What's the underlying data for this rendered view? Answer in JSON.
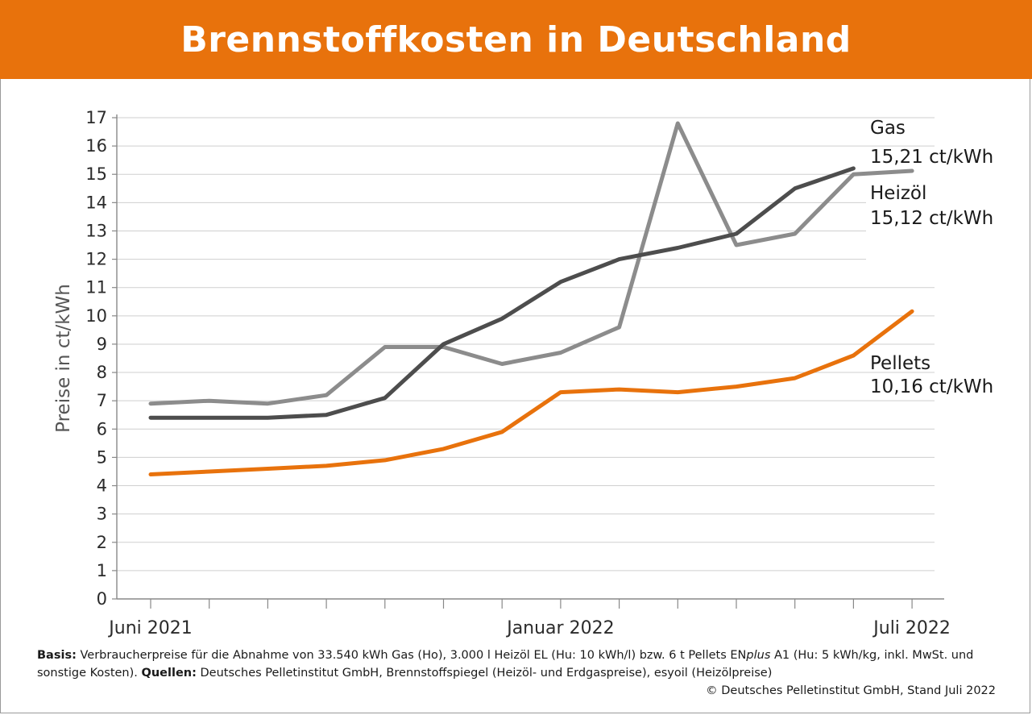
{
  "title": "Brennstoffkosten in Deutschland",
  "footer": {
    "basis_label": "Basis:",
    "basis_text": " Verbraucherpreise für die Abnahme von 33.540 kWh Gas (Ho), 3.000 l Heizöl EL (Hu: 10 kWh/l) bzw. 6 t Pellets EN",
    "basis_italic": "plus",
    "basis_text2": " A1 (Hu: 5 kWh/kg, inkl. MwSt. und sonstige Kosten). ",
    "quellen_label": "Quellen:",
    "quellen_text": " Deutsches Pelletinstitut GmbH, Brennstoffspiegel (Heizöl- und Erdgaspreise), esyoil (Heizölpreise)",
    "copyright": "© Deutsches Pelletinstitut GmbH, Stand Juli 2022"
  },
  "chart_data": {
    "type": "line",
    "title": "Brennstoffkosten in Deutschland",
    "ylabel": "Preise in ct/kWh",
    "xlabel": "",
    "ylim": [
      0,
      17
    ],
    "yticks": [
      0,
      1,
      2,
      3,
      4,
      5,
      6,
      7,
      8,
      9,
      10,
      11,
      12,
      13,
      14,
      15,
      16,
      17
    ],
    "x": [
      "2021-06",
      "2021-07",
      "2021-08",
      "2021-09",
      "2021-10",
      "2021-11",
      "2021-12",
      "2022-01",
      "2022-02",
      "2022-03",
      "2022-04",
      "2022-05",
      "2022-06",
      "2022-07"
    ],
    "xtick_labels": [
      {
        "index": 0,
        "label": "Juni 2021"
      },
      {
        "index": 7,
        "label": "Januar 2022"
      },
      {
        "index": 13,
        "label": "Juli 2022"
      }
    ],
    "grid": true,
    "series": [
      {
        "name": "Heizöl",
        "color": "#8c8c8c",
        "values": [
          6.9,
          7.0,
          6.9,
          7.2,
          8.9,
          8.9,
          8.3,
          8.7,
          9.6,
          16.8,
          12.5,
          12.9,
          15.0,
          15.12
        ],
        "label_line1": "Heizöl",
        "label_line2": "15,12 ct/kWh"
      },
      {
        "name": "Gas",
        "color": "#4d4d4d",
        "values": [
          6.4,
          6.4,
          6.4,
          6.5,
          7.1,
          9.0,
          9.9,
          11.2,
          12.0,
          12.4,
          12.9,
          14.5,
          15.21,
          null
        ],
        "label_line1": "Gas",
        "label_line2": "15,21 ct/kWh"
      },
      {
        "name": "Pellets",
        "color": "#e8720c",
        "values": [
          4.4,
          4.5,
          4.6,
          4.7,
          4.9,
          5.3,
          5.9,
          7.3,
          7.4,
          7.3,
          7.5,
          7.8,
          8.6,
          10.16
        ],
        "label_line1": "Pellets",
        "label_line2": "10,16 ct/kWh"
      }
    ]
  }
}
